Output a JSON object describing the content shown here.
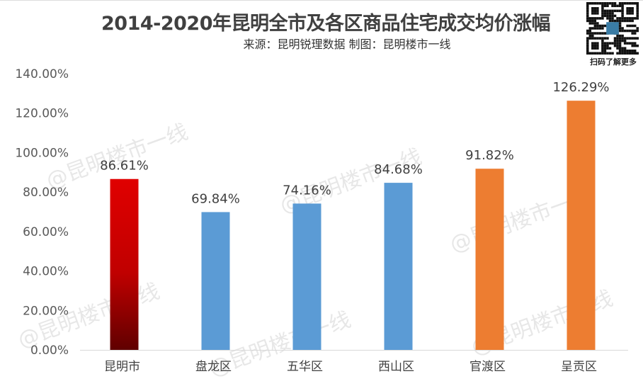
{
  "qr_caption": "扫码了解更多",
  "watermark": "@昆明楼市一线",
  "chart_data": {
    "type": "bar",
    "title": "2014-2020年昆明全市及各区商品住宅成交均价涨幅",
    "subtitle": "来源：昆明锐理数据 制图：昆明楼市一线",
    "categories": [
      "昆明市",
      "盘龙区",
      "五华区",
      "西山区",
      "官渡区",
      "呈贡区"
    ],
    "values": [
      86.61,
      69.84,
      74.16,
      84.68,
      91.82,
      126.29
    ],
    "data_labels": [
      "86.61%",
      "69.84%",
      "74.16%",
      "84.68%",
      "91.82%",
      "126.29%"
    ],
    "colors": [
      "#d40000",
      "#5b9bd5",
      "#5b9bd5",
      "#5b9bd5",
      "#ed7d31",
      "#ed7d31"
    ],
    "ylim": [
      0,
      140
    ],
    "yticks": [
      "0.00%",
      "20.00%",
      "40.00%",
      "60.00%",
      "80.00%",
      "100.00%",
      "120.00%",
      "140.00%"
    ],
    "grid": false,
    "xlabel": "",
    "ylabel": ""
  }
}
